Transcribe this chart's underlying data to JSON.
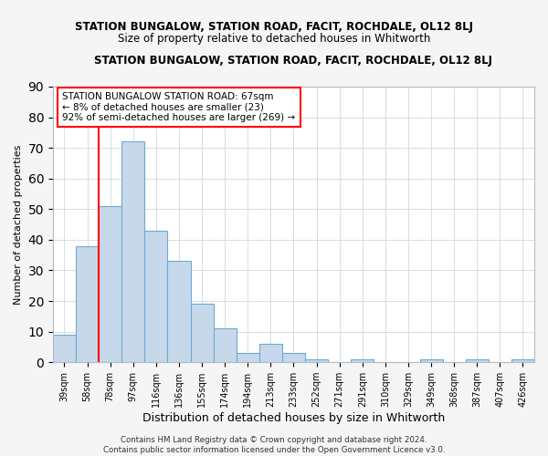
{
  "title": "STATION BUNGALOW, STATION ROAD, FACIT, ROCHDALE, OL12 8LJ",
  "subtitle": "Size of property relative to detached houses in Whitworth",
  "xlabel": "Distribution of detached houses by size in Whitworth",
  "ylabel": "Number of detached properties",
  "bar_labels": [
    "39sqm",
    "58sqm",
    "78sqm",
    "97sqm",
    "116sqm",
    "136sqm",
    "155sqm",
    "174sqm",
    "194sqm",
    "213sqm",
    "233sqm",
    "252sqm",
    "271sqm",
    "291sqm",
    "310sqm",
    "329sqm",
    "349sqm",
    "368sqm",
    "387sqm",
    "407sqm",
    "426sqm"
  ],
  "bar_values": [
    9,
    38,
    51,
    72,
    43,
    33,
    19,
    11,
    3,
    6,
    3,
    1,
    0,
    1,
    0,
    0,
    1,
    0,
    1,
    0,
    1
  ],
  "bar_color": "#c8d8eb",
  "bar_edge_color": "#6aaad4",
  "ylim": [
    0,
    90
  ],
  "yticks": [
    0,
    10,
    20,
    30,
    40,
    50,
    60,
    70,
    80,
    90
  ],
  "property_line_x": 1.5,
  "annotation_line1": "STATION BUNGALOW STATION ROAD: 67sqm",
  "annotation_line2": "← 8% of detached houses are smaller (23)",
  "annotation_line3": "92% of semi-detached houses are larger (269) →",
  "footer_line1": "Contains HM Land Registry data © Crown copyright and database right 2024.",
  "footer_line2": "Contains public sector information licensed under the Open Government Licence v3.0.",
  "background_color": "#f5f5f5",
  "plot_bg_color": "#ffffff",
  "grid_color": "#d0d8e0"
}
